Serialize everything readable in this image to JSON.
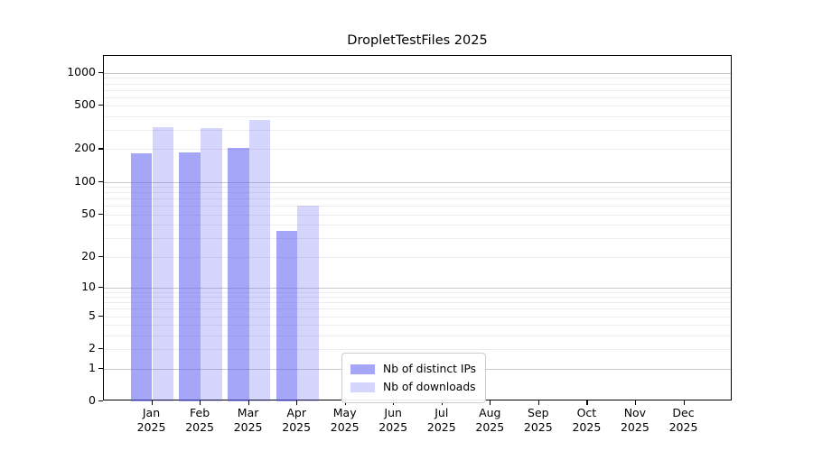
{
  "chart": {
    "title": "DropletTestFiles 2025",
    "legend": [
      {
        "label": "Nb of distinct IPs",
        "color": "rgba(92,92,242,0.55)"
      },
      {
        "label": "Nb of downloads",
        "color": "rgba(92,92,242,0.25)"
      }
    ]
  },
  "chart_data": {
    "type": "bar",
    "title": "DropletTestFiles 2025",
    "categories": [
      "Jan 2025",
      "Feb 2025",
      "Mar 2025",
      "Apr 2025",
      "May 2025",
      "Jun 2025",
      "Jul 2025",
      "Aug 2025",
      "Sep 2025",
      "Oct 2025",
      "Nov 2025",
      "Dec 2025"
    ],
    "series": [
      {
        "name": "Nb of distinct IPs",
        "color": "rgba(92,92,242,0.55)",
        "values": [
          185,
          188,
          205,
          35,
          0,
          0,
          0,
          0,
          0,
          0,
          0,
          0
        ]
      },
      {
        "name": "Nb of downloads",
        "color": "rgba(92,92,242,0.25)",
        "values": [
          320,
          310,
          370,
          60,
          0,
          0,
          0,
          0,
          0,
          0,
          0,
          0
        ]
      }
    ],
    "xlabel": "",
    "ylabel": "",
    "yscale": "log1p",
    "yticks": [
      0,
      1,
      2,
      5,
      10,
      20,
      50,
      100,
      200,
      500,
      1000
    ],
    "ylim": [
      0,
      1428
    ],
    "grid": true,
    "legend_position": "lower center",
    "colors": {
      "bar_dark": "rgba(92,92,242,0.55)",
      "bar_light": "rgba(92,92,242,0.25)",
      "grid_major": "#c9c9c9",
      "grid_minor": "#ececec",
      "spine": "#000000"
    }
  }
}
